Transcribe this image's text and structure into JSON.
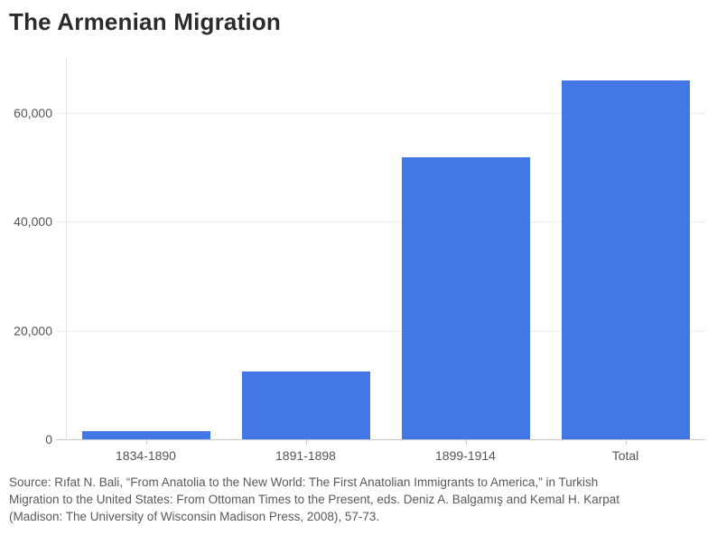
{
  "title": "The Armenian Migration",
  "source_lines": [
    "Source: Rıfat N. Bali, “From Anatolia to the New World: The First Anatolian Immigrants to America,” in Turkish",
    "Migration to the United States: From Ottoman Times to the Present, eds. Deniz A. Balgamış and Kemal H. Karpat",
    "(Madison: The University of Wisconsin Madison Press, 2008), 57-73."
  ],
  "colors": {
    "bar": "#4377e6",
    "grid": "#ececec",
    "baseline": "#c9c9c9",
    "axis_line": "#e4e4e4",
    "axis_text": "#555555",
    "title_text": "#2b2b2b",
    "source_text": "#595959"
  },
  "chart_data": {
    "type": "bar",
    "title": "The Armenian Migration",
    "categories": [
      "1834-1890",
      "1891-1898",
      "1899-1914",
      "Total"
    ],
    "values": [
      1500,
      12500,
      51950,
      65950
    ],
    "xlabel": "",
    "ylabel": "",
    "ylim": [
      0,
      70000
    ],
    "yticks": [
      0,
      20000,
      40000,
      60000
    ],
    "ytick_labels": [
      "0",
      "20,000",
      "40,000",
      "60,000"
    ],
    "grid": "horizontal",
    "legend": "none",
    "bar_color": "#4377e6"
  }
}
